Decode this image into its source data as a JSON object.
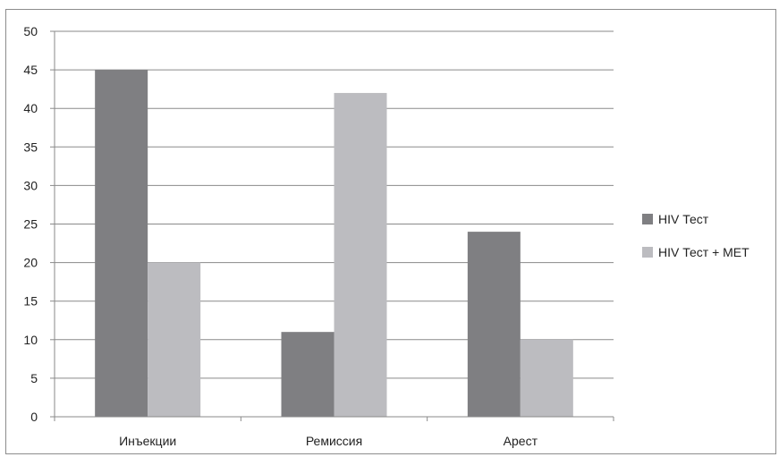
{
  "chart_data": {
    "type": "bar",
    "categories": [
      "Инъекции",
      "Ремиссия",
      "Арест"
    ],
    "series": [
      {
        "name": "HIV Тест",
        "values": [
          45,
          11,
          24
        ],
        "color": "#7f7f82"
      },
      {
        "name": "HIV Тест + МЕТ",
        "values": [
          20,
          42,
          10
        ],
        "color": "#bcbcc0"
      }
    ],
    "y_ticks": [
      "0",
      "5",
      "10",
      "15",
      "20",
      "25",
      "30",
      "35",
      "40",
      "45",
      "50"
    ],
    "ylim": [
      0,
      50
    ],
    "grid": true,
    "legend": "right",
    "title": "",
    "xlabel": "",
    "ylabel": ""
  }
}
